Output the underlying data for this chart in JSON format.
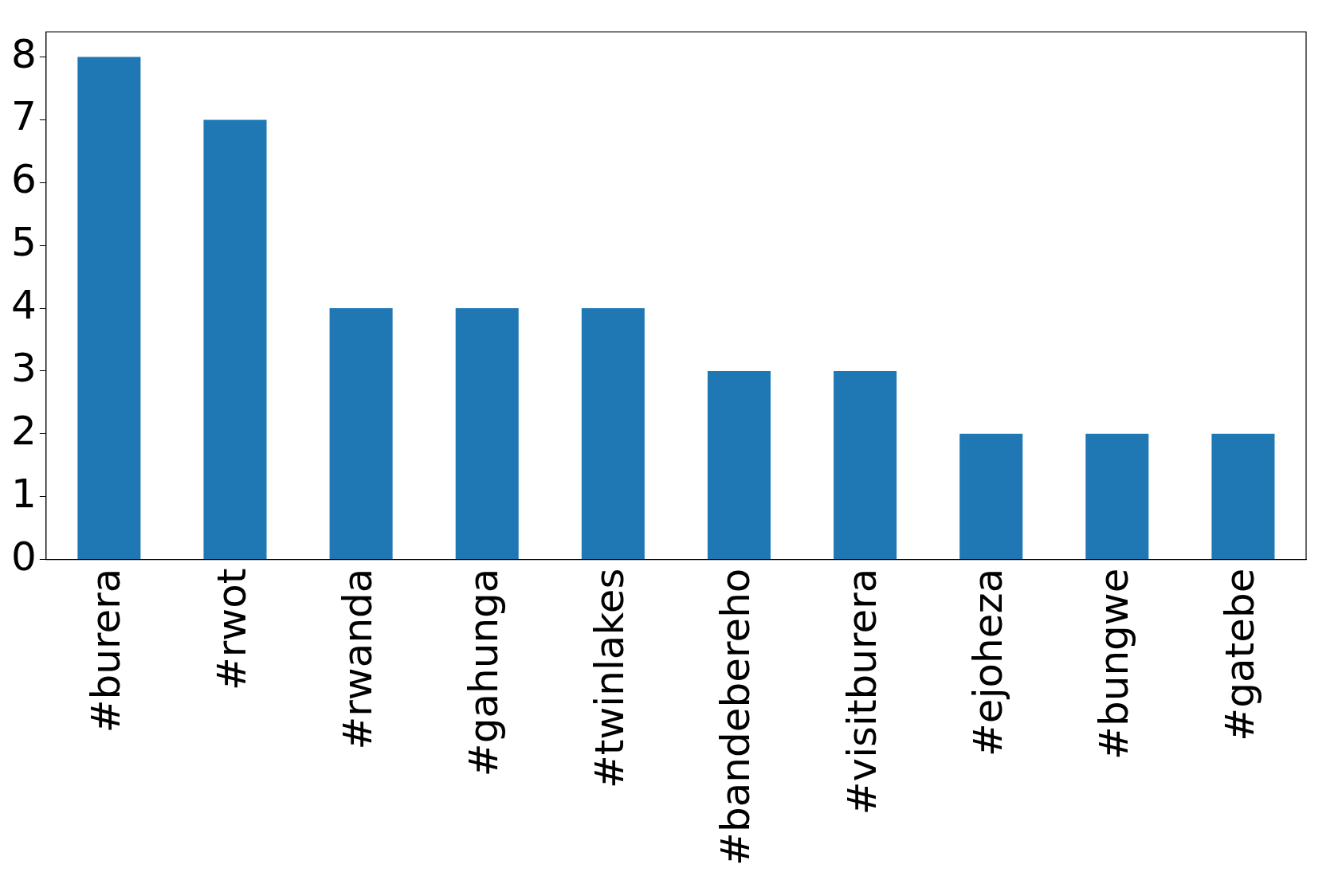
{
  "chart_data": {
    "type": "bar",
    "categories": [
      "#burera",
      "#rwot",
      "#rwanda",
      "#gahunga",
      "#twinlakes",
      "#bandebereho",
      "#visitburera",
      "#ejoheza",
      "#bungwe",
      "#gatebe"
    ],
    "values": [
      8,
      7,
      4,
      4,
      4,
      3,
      3,
      2,
      2,
      2
    ],
    "color": "#1f77b4",
    "ylim": [
      0,
      8.4
    ],
    "yticks": [
      0,
      1,
      2,
      3,
      4,
      5,
      6,
      7,
      8
    ],
    "grid": false,
    "legend": false
  }
}
